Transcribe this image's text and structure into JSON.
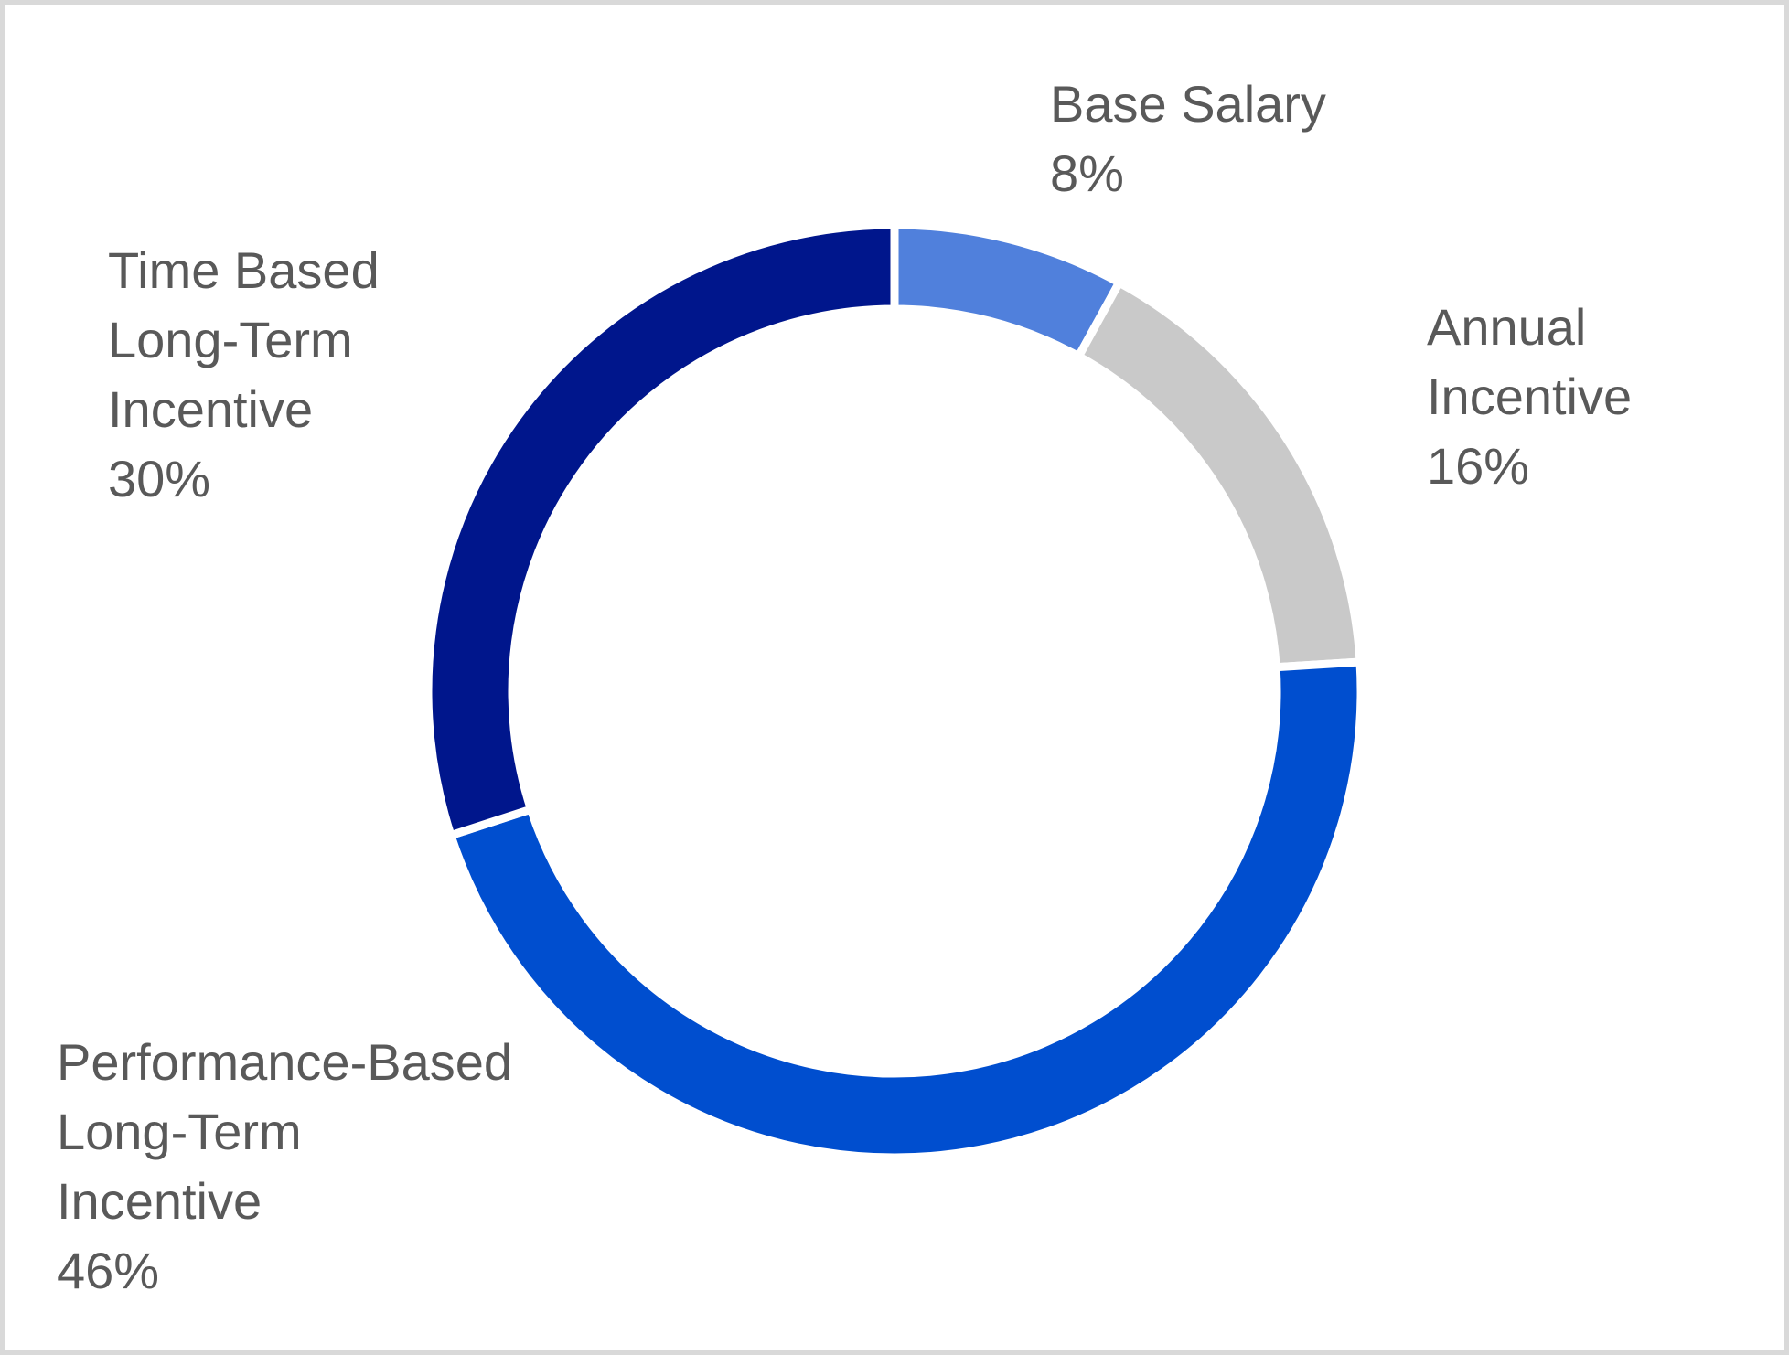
{
  "chart_data": {
    "type": "pie",
    "subtype": "donut",
    "title": "",
    "categories": [
      "Base Salary",
      "Annual Incentive",
      "Performance-Based Long-Term Incentive",
      "Time Based Long-Term Incentive"
    ],
    "values": [
      8,
      16,
      46,
      30
    ],
    "unit": "%",
    "colors": [
      "#5080dc",
      "#c9c9c9",
      "#004ecf",
      "#00168c"
    ],
    "start_angle": "12 o'clock",
    "direction": "clockwise",
    "legend": "none",
    "slice_labels": [
      {
        "lines": [
          "Base Salary"
        ],
        "value_text": "8%"
      },
      {
        "lines": [
          "Annual",
          "Incentive"
        ],
        "value_text": "16%"
      },
      {
        "lines": [
          "Performance-Based",
          "Long-Term",
          "Incentive"
        ],
        "value_text": "46%"
      },
      {
        "lines": [
          "Time Based",
          "Long-Term",
          "Incentive"
        ],
        "value_text": "30%"
      }
    ]
  },
  "colors": {
    "label_text": "#595959",
    "frame_border": "#d9d9d9",
    "background": "#ffffff",
    "slice_gap": "#ffffff"
  }
}
